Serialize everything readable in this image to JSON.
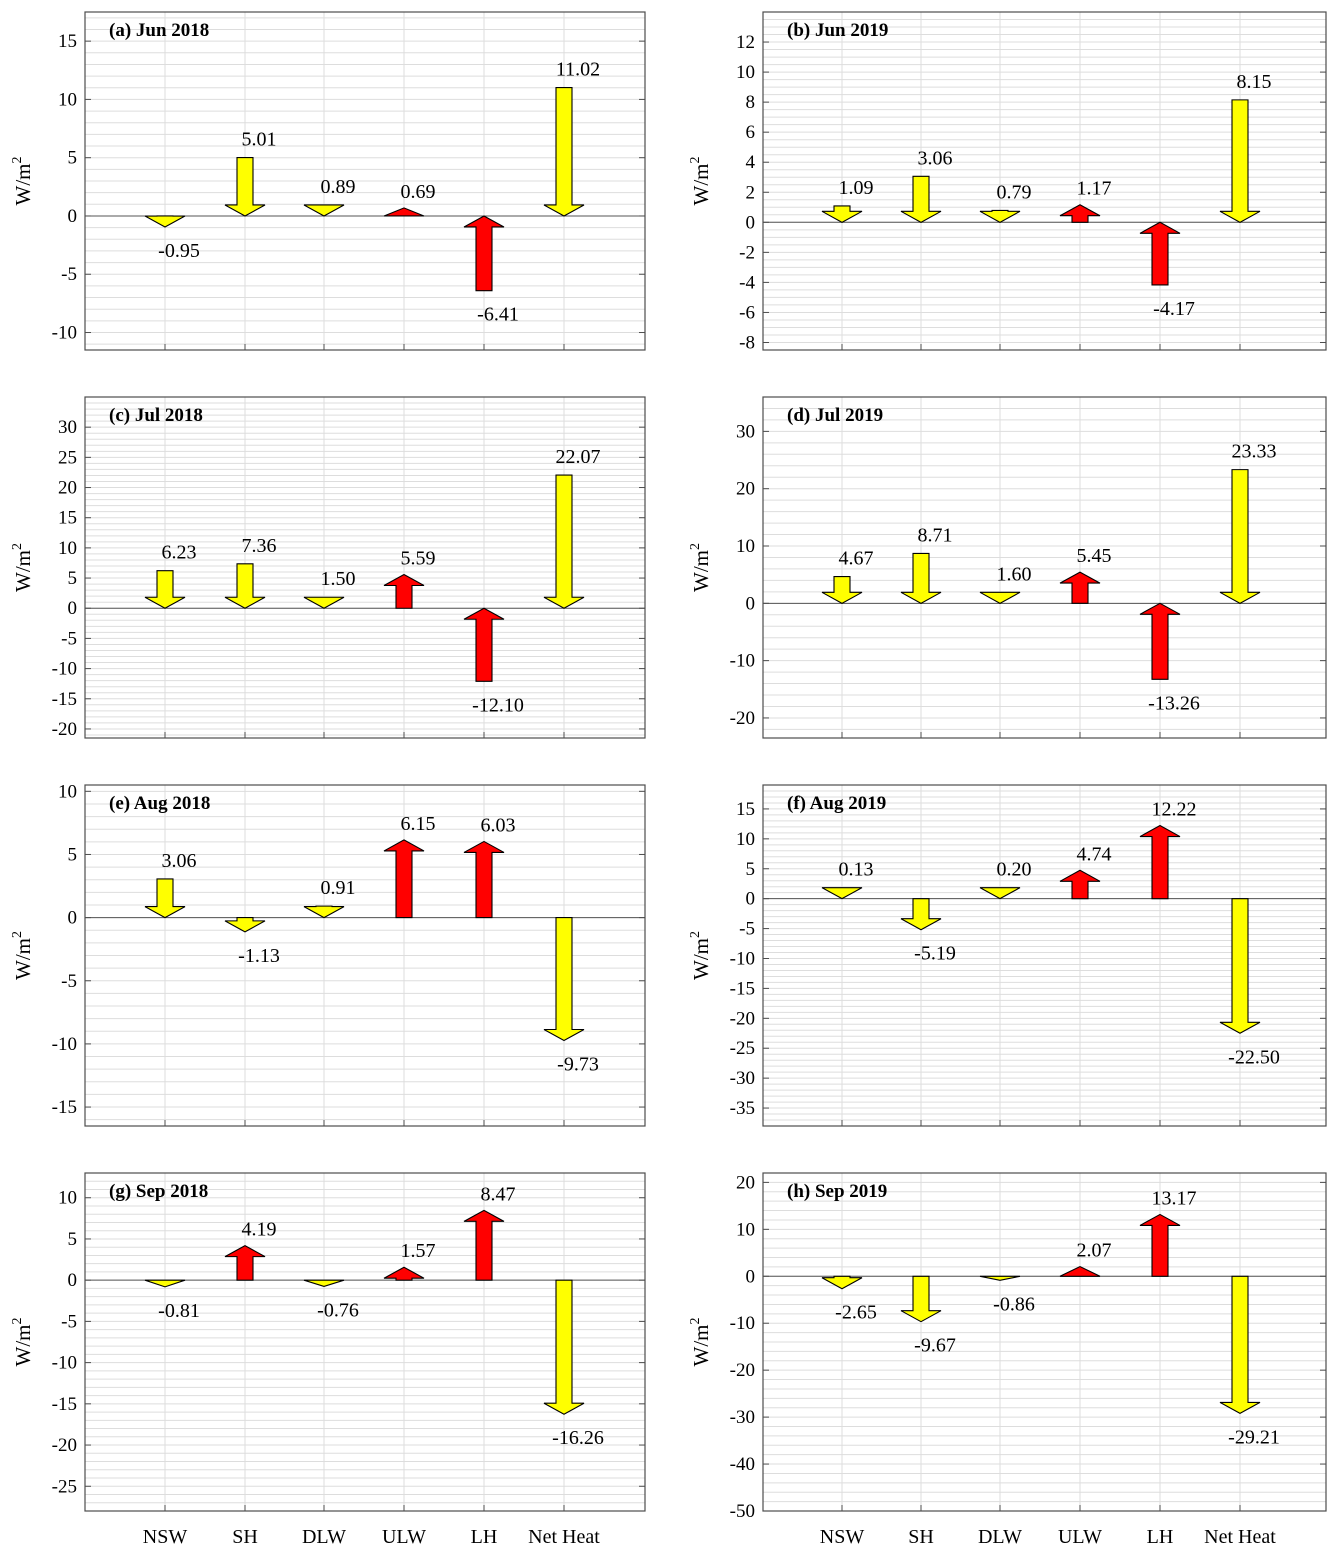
{
  "colors": {
    "downward": "#ffff00",
    "upward": "#ff0000",
    "grid": "#dddddd",
    "axis": "#4d4d4d",
    "zero_line": "#555555"
  },
  "categories": [
    "NSW",
    "SH",
    "DLW",
    "ULW",
    "LH",
    "Net Heat"
  ],
  "chart_data": [
    {
      "type": "bar",
      "title": "(a) Jun 2018",
      "ylabel": "W/m²",
      "categories": [
        "NSW",
        "SH",
        "DLW",
        "ULW",
        "LH",
        "Net Heat"
      ],
      "values": [
        -0.95,
        5.01,
        0.89,
        0.69,
        -6.41,
        11.02
      ],
      "labels": [
        "-0.95",
        "5.01",
        "0.89",
        "0.69",
        "-6.41",
        "11.02"
      ],
      "arrow_direction": [
        "down",
        "down",
        "down",
        "up",
        "up",
        "down"
      ],
      "ylim": [
        -11.5,
        17.5
      ],
      "yticks": [
        -10,
        -5,
        0,
        5,
        10,
        15
      ],
      "minor_grid_step": 1,
      "grid": true
    },
    {
      "type": "bar",
      "title": "(b) Jun 2019",
      "ylabel": "W/m²",
      "categories": [
        "NSW",
        "SH",
        "DLW",
        "ULW",
        "LH",
        "Net Heat"
      ],
      "values": [
        1.09,
        3.06,
        0.79,
        1.17,
        -4.17,
        8.15
      ],
      "labels": [
        "1.09",
        "3.06",
        "0.79",
        "1.17",
        "-4.17",
        "8.15"
      ],
      "arrow_direction": [
        "down",
        "down",
        "down",
        "up",
        "up",
        "down"
      ],
      "ylim": [
        -8.5,
        14
      ],
      "yticks": [
        -8,
        -6,
        -4,
        -2,
        0,
        2,
        4,
        6,
        8,
        10,
        12
      ],
      "minor_grid_step": 0.5,
      "grid": true
    },
    {
      "type": "bar",
      "title": "(c) Jul 2018",
      "ylabel": "W/m²",
      "categories": [
        "NSW",
        "SH",
        "DLW",
        "ULW",
        "LH",
        "Net Heat"
      ],
      "values": [
        6.23,
        7.36,
        1.5,
        5.59,
        -12.1,
        22.07
      ],
      "labels": [
        "6.23",
        "7.36",
        "1.50",
        "5.59",
        "-12.10",
        "22.07"
      ],
      "arrow_direction": [
        "down",
        "down",
        "down",
        "up",
        "up",
        "down"
      ],
      "ylim": [
        -21.5,
        35
      ],
      "yticks": [
        -20,
        -15,
        -10,
        -5,
        0,
        5,
        10,
        15,
        20,
        25,
        30
      ],
      "minor_grid_step": 1,
      "grid": true
    },
    {
      "type": "bar",
      "title": "(d) Jul 2019",
      "ylabel": "W/m²",
      "categories": [
        "NSW",
        "SH",
        "DLW",
        "ULW",
        "LH",
        "Net Heat"
      ],
      "values": [
        4.67,
        8.71,
        1.6,
        5.45,
        -13.26,
        23.33
      ],
      "labels": [
        "4.67",
        "8.71",
        "1.60",
        "5.45",
        "-13.26",
        "23.33"
      ],
      "arrow_direction": [
        "down",
        "down",
        "down",
        "up",
        "up",
        "down"
      ],
      "ylim": [
        -23.5,
        36
      ],
      "yticks": [
        -20,
        -10,
        0,
        10,
        20,
        30
      ],
      "minor_grid_step": 2,
      "grid": true
    },
    {
      "type": "bar",
      "title": "(e) Aug 2018",
      "ylabel": "W/m²",
      "categories": [
        "NSW",
        "SH",
        "DLW",
        "ULW",
        "LH",
        "Net Heat"
      ],
      "values": [
        3.06,
        -1.13,
        0.91,
        6.15,
        6.03,
        -9.73
      ],
      "labels": [
        "3.06",
        "-1.13",
        "0.91",
        "6.15",
        "6.03",
        "-9.73"
      ],
      "arrow_direction": [
        "down",
        "down",
        "down",
        "up",
        "up",
        "down"
      ],
      "ylim": [
        -16.5,
        10.5
      ],
      "yticks": [
        -15,
        -10,
        -5,
        0,
        5,
        10
      ],
      "minor_grid_step": 1,
      "grid": true
    },
    {
      "type": "bar",
      "title": "(f) Aug 2019",
      "ylabel": "W/m²",
      "categories": [
        "NSW",
        "SH",
        "DLW",
        "ULW",
        "LH",
        "Net Heat"
      ],
      "values": [
        0.13,
        -5.19,
        0.2,
        4.74,
        12.22,
        -22.5
      ],
      "labels": [
        "0.13",
        "-5.19",
        "0.20",
        "4.74",
        "12.22",
        "-22.50"
      ],
      "arrow_direction": [
        "down",
        "down",
        "down",
        "up",
        "up",
        "down"
      ],
      "ylim": [
        -38,
        19
      ],
      "yticks": [
        -35,
        -30,
        -25,
        -20,
        -15,
        -10,
        -5,
        0,
        5,
        10,
        15
      ],
      "minor_grid_step": 1,
      "grid": true
    },
    {
      "type": "bar",
      "title": "(g) Sep 2018",
      "ylabel": "W/m²",
      "categories": [
        "NSW",
        "SH",
        "DLW",
        "ULW",
        "LH",
        "Net Heat"
      ],
      "values": [
        -0.81,
        4.19,
        -0.76,
        1.57,
        8.47,
        -16.26
      ],
      "labels": [
        "-0.81",
        "4.19",
        "-0.76",
        "1.57",
        "8.47",
        "-16.26"
      ],
      "arrow_direction": [
        "down",
        "up",
        "down",
        "up",
        "up",
        "down"
      ],
      "ylim": [
        -28,
        13
      ],
      "yticks": [
        -25,
        -20,
        -15,
        -10,
        -5,
        0,
        5,
        10
      ],
      "minor_grid_step": 1,
      "grid": true
    },
    {
      "type": "bar",
      "title": "(h) Sep 2019",
      "ylabel": "W/m²",
      "categories": [
        "NSW",
        "SH",
        "DLW",
        "ULW",
        "LH",
        "Net Heat"
      ],
      "values": [
        -2.65,
        -9.67,
        -0.86,
        2.07,
        13.17,
        -29.21
      ],
      "labels": [
        "-2.65",
        "-9.67",
        "-0.86",
        "2.07",
        "13.17",
        "-29.21"
      ],
      "arrow_direction": [
        "down",
        "down",
        "down",
        "up",
        "up",
        "down"
      ],
      "ylim": [
        -50,
        22
      ],
      "yticks": [
        -50,
        -40,
        -30,
        -20,
        -10,
        0,
        10,
        20
      ],
      "minor_grid_step": 2,
      "grid": true
    }
  ]
}
